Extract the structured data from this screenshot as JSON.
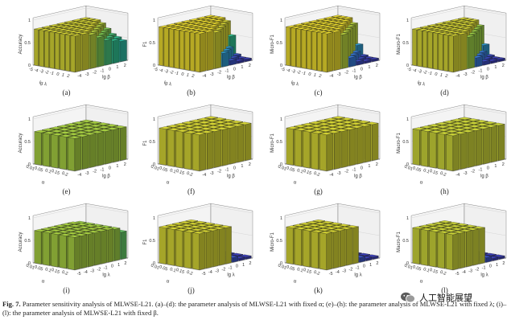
{
  "chart_data": [
    {
      "panel": "(a)",
      "type": "bar3d",
      "zlabel": "Accuracy",
      "xlabel": "lg λ",
      "ylabel": "lg β",
      "x_ticks": [
        "-5",
        "-4",
        "-3",
        "-2",
        "-1",
        "0",
        "1",
        "2"
      ],
      "y_ticks": [
        "-4",
        "-3",
        "-2",
        "-1",
        "0",
        "1",
        "2"
      ],
      "z_ticks": [
        "0",
        "0.5",
        "1"
      ],
      "zlim": [
        0,
        1
      ],
      "fixed": "α",
      "values": [
        [
          0.8,
          0.8,
          0.8,
          0.8,
          0.8,
          0.8,
          0.8
        ],
        [
          0.8,
          0.8,
          0.8,
          0.8,
          0.8,
          0.8,
          0.8
        ],
        [
          0.8,
          0.8,
          0.8,
          0.8,
          0.8,
          0.8,
          0.8
        ],
        [
          0.8,
          0.8,
          0.8,
          0.8,
          0.8,
          0.8,
          0.75
        ],
        [
          0.8,
          0.8,
          0.8,
          0.8,
          0.8,
          0.75,
          0.65
        ],
        [
          0.8,
          0.8,
          0.8,
          0.8,
          0.75,
          0.65,
          0.55
        ],
        [
          0.8,
          0.8,
          0.8,
          0.75,
          0.65,
          0.55,
          0.5
        ],
        [
          0.8,
          0.8,
          0.75,
          0.65,
          0.55,
          0.5,
          0.45
        ]
      ]
    },
    {
      "panel": "(b)",
      "type": "bar3d",
      "zlabel": "F1",
      "xlabel": "lg λ",
      "ylabel": "lg β",
      "x_ticks": [
        "-5",
        "-4",
        "-3",
        "-2",
        "-1",
        "0",
        "1",
        "2"
      ],
      "y_ticks": [
        "-4",
        "-3",
        "-2",
        "-1",
        "0",
        "1",
        "2"
      ],
      "z_ticks": [
        "0",
        "0.5",
        "1"
      ],
      "zlim": [
        0,
        1
      ],
      "fixed": "α",
      "values": [
        [
          0.85,
          0.85,
          0.85,
          0.85,
          0.85,
          0.85,
          0.85
        ],
        [
          0.85,
          0.85,
          0.85,
          0.85,
          0.85,
          0.85,
          0.85
        ],
        [
          0.85,
          0.85,
          0.85,
          0.85,
          0.85,
          0.85,
          0.85
        ],
        [
          0.85,
          0.85,
          0.85,
          0.85,
          0.85,
          0.85,
          0.8
        ],
        [
          0.85,
          0.85,
          0.85,
          0.85,
          0.85,
          0.8,
          0.5
        ],
        [
          0.85,
          0.85,
          0.85,
          0.85,
          0.8,
          0.3,
          0.1
        ],
        [
          0.85,
          0.85,
          0.85,
          0.8,
          0.3,
          0.1,
          0.05
        ],
        [
          0.85,
          0.85,
          0.8,
          0.3,
          0.1,
          0.05,
          0.05
        ]
      ]
    },
    {
      "panel": "(c)",
      "type": "bar3d",
      "zlabel": "Micro-F1",
      "xlabel": "lg λ",
      "ylabel": "lg β",
      "x_ticks": [
        "-5",
        "-4",
        "-3",
        "-2",
        "-1",
        "0",
        "1",
        "2"
      ],
      "y_ticks": [
        "-4",
        "-3",
        "-2",
        "-1",
        "0",
        "1",
        "2"
      ],
      "z_ticks": [
        "0",
        "0.5",
        "1"
      ],
      "zlim": [
        0,
        1
      ],
      "fixed": "α",
      "values": [
        [
          0.85,
          0.85,
          0.85,
          0.85,
          0.85,
          0.85,
          0.85
        ],
        [
          0.85,
          0.85,
          0.85,
          0.85,
          0.85,
          0.85,
          0.85
        ],
        [
          0.85,
          0.85,
          0.85,
          0.85,
          0.85,
          0.85,
          0.85
        ],
        [
          0.85,
          0.85,
          0.85,
          0.85,
          0.85,
          0.85,
          0.75
        ],
        [
          0.85,
          0.85,
          0.85,
          0.85,
          0.85,
          0.75,
          0.3
        ],
        [
          0.85,
          0.85,
          0.85,
          0.85,
          0.75,
          0.2,
          0.08
        ],
        [
          0.85,
          0.85,
          0.85,
          0.75,
          0.2,
          0.08,
          0.05
        ],
        [
          0.85,
          0.85,
          0.75,
          0.2,
          0.08,
          0.05,
          0.05
        ]
      ]
    },
    {
      "panel": "(d)",
      "type": "bar3d",
      "zlabel": "Macro-F1",
      "xlabel": "lg λ",
      "ylabel": "lg β",
      "x_ticks": [
        "-5",
        "-4",
        "-3",
        "-2",
        "-1",
        "0",
        "1",
        "2"
      ],
      "y_ticks": [
        "-4",
        "-3",
        "-2",
        "-1",
        "0",
        "1",
        "2"
      ],
      "z_ticks": [
        "0",
        "0.5",
        "1"
      ],
      "zlim": [
        0,
        1
      ],
      "fixed": "α",
      "values": [
        [
          0.8,
          0.8,
          0.8,
          0.8,
          0.8,
          0.8,
          0.8
        ],
        [
          0.8,
          0.8,
          0.8,
          0.8,
          0.8,
          0.8,
          0.8
        ],
        [
          0.8,
          0.8,
          0.8,
          0.8,
          0.8,
          0.8,
          0.8
        ],
        [
          0.8,
          0.8,
          0.8,
          0.8,
          0.8,
          0.8,
          0.7
        ],
        [
          0.8,
          0.8,
          0.8,
          0.8,
          0.8,
          0.7,
          0.3
        ],
        [
          0.8,
          0.8,
          0.8,
          0.8,
          0.7,
          0.2,
          0.08
        ],
        [
          0.8,
          0.8,
          0.8,
          0.7,
          0.2,
          0.08,
          0.05
        ],
        [
          0.8,
          0.8,
          0.7,
          0.2,
          0.08,
          0.05,
          0.05
        ]
      ]
    },
    {
      "panel": "(e)",
      "type": "bar3d",
      "zlabel": "Accuracy",
      "xlabel": "α",
      "ylabel": "lg β",
      "x_ticks": [
        "0.01",
        "0.05",
        "0.1",
        "0.15",
        "0.2"
      ],
      "y_ticks": [
        "-4",
        "-3",
        "-2",
        "-1",
        "0",
        "1",
        "2"
      ],
      "z_ticks": [
        "0",
        "0.5",
        "1"
      ],
      "zlim": [
        0,
        1
      ],
      "fixed": "λ",
      "values": [
        [
          0.72,
          0.72,
          0.72,
          0.72,
          0.72,
          0.72,
          0.72
        ],
        [
          0.72,
          0.72,
          0.72,
          0.72,
          0.72,
          0.72,
          0.72
        ],
        [
          0.72,
          0.72,
          0.72,
          0.72,
          0.72,
          0.72,
          0.72
        ],
        [
          0.72,
          0.72,
          0.72,
          0.72,
          0.72,
          0.72,
          0.72
        ],
        [
          0.72,
          0.72,
          0.72,
          0.72,
          0.72,
          0.72,
          0.72
        ]
      ]
    },
    {
      "panel": "(f)",
      "type": "bar3d",
      "zlabel": "F1",
      "xlabel": "α",
      "ylabel": "lg β",
      "x_ticks": [
        "0.01",
        "0.05",
        "0.1",
        "0.15",
        "0.2"
      ],
      "y_ticks": [
        "-4",
        "-3",
        "-2",
        "-1",
        "0",
        "1",
        "2"
      ],
      "z_ticks": [
        "0",
        "0.5",
        "1"
      ],
      "zlim": [
        0,
        1
      ],
      "fixed": "λ",
      "values": [
        [
          0.8,
          0.8,
          0.8,
          0.8,
          0.8,
          0.8,
          0.8
        ],
        [
          0.8,
          0.8,
          0.8,
          0.8,
          0.8,
          0.8,
          0.8
        ],
        [
          0.8,
          0.8,
          0.8,
          0.8,
          0.8,
          0.8,
          0.8
        ],
        [
          0.8,
          0.8,
          0.8,
          0.8,
          0.8,
          0.8,
          0.8
        ],
        [
          0.8,
          0.8,
          0.8,
          0.8,
          0.8,
          0.8,
          0.8
        ]
      ]
    },
    {
      "panel": "(g)",
      "type": "bar3d",
      "zlabel": "Micro-F1",
      "xlabel": "α",
      "ylabel": "lg β",
      "x_ticks": [
        "0.01",
        "0.05",
        "0.1",
        "0.15",
        "0.2"
      ],
      "y_ticks": [
        "-4",
        "-3",
        "-2",
        "-1",
        "0",
        "1",
        "2"
      ],
      "z_ticks": [
        "0",
        "0.5",
        "1"
      ],
      "zlim": [
        0,
        1
      ],
      "fixed": "λ",
      "values": [
        [
          0.8,
          0.8,
          0.8,
          0.8,
          0.8,
          0.8,
          0.8
        ],
        [
          0.8,
          0.8,
          0.8,
          0.8,
          0.8,
          0.8,
          0.8
        ],
        [
          0.8,
          0.8,
          0.8,
          0.8,
          0.8,
          0.8,
          0.8
        ],
        [
          0.8,
          0.8,
          0.8,
          0.8,
          0.8,
          0.8,
          0.8
        ],
        [
          0.8,
          0.8,
          0.8,
          0.8,
          0.8,
          0.8,
          0.8
        ]
      ]
    },
    {
      "panel": "(h)",
      "type": "bar3d",
      "zlabel": "Macro-F1",
      "xlabel": "α",
      "ylabel": "lg β",
      "x_ticks": [
        "0.01",
        "0.05",
        "0.1",
        "0.15",
        "0.2"
      ],
      "y_ticks": [
        "-4",
        "-3",
        "-2",
        "-1",
        "0",
        "1",
        "2"
      ],
      "z_ticks": [
        "0",
        "0.5",
        "1"
      ],
      "zlim": [
        0,
        1
      ],
      "fixed": "λ",
      "values": [
        [
          0.78,
          0.78,
          0.78,
          0.78,
          0.78,
          0.78,
          0.78
        ],
        [
          0.78,
          0.78,
          0.78,
          0.78,
          0.78,
          0.78,
          0.78
        ],
        [
          0.78,
          0.78,
          0.78,
          0.78,
          0.78,
          0.78,
          0.78
        ],
        [
          0.78,
          0.78,
          0.78,
          0.78,
          0.78,
          0.78,
          0.78
        ],
        [
          0.78,
          0.78,
          0.78,
          0.78,
          0.78,
          0.78,
          0.78
        ]
      ]
    },
    {
      "panel": "(i)",
      "type": "bar3d",
      "zlabel": "Accuracy",
      "xlabel": "α",
      "ylabel": "lg λ",
      "x_ticks": [
        "0.01",
        "0.05",
        "0.1",
        "0.15",
        "0.2"
      ],
      "y_ticks": [
        "-5",
        "-4",
        "-3",
        "-2",
        "-1",
        "0",
        "1",
        "2"
      ],
      "z_ticks": [
        "0",
        "0.5",
        "1"
      ],
      "zlim": [
        0,
        1
      ],
      "fixed": "β",
      "values": [
        [
          0.72,
          0.72,
          0.72,
          0.72,
          0.72,
          0.72,
          0.7,
          0.6
        ],
        [
          0.72,
          0.72,
          0.72,
          0.72,
          0.72,
          0.72,
          0.7,
          0.6
        ],
        [
          0.72,
          0.72,
          0.72,
          0.72,
          0.72,
          0.72,
          0.7,
          0.6
        ],
        [
          0.72,
          0.72,
          0.72,
          0.72,
          0.72,
          0.72,
          0.7,
          0.6
        ],
        [
          0.72,
          0.72,
          0.72,
          0.72,
          0.72,
          0.72,
          0.7,
          0.6
        ]
      ]
    },
    {
      "panel": "(j)",
      "type": "bar3d",
      "zlabel": "F1",
      "xlabel": "α",
      "ylabel": "lg λ",
      "x_ticks": [
        "0.01",
        "0.05",
        "0.1",
        "0.15",
        "0.2"
      ],
      "y_ticks": [
        "-5",
        "-4",
        "-3",
        "-2",
        "-1",
        "0",
        "1",
        "2"
      ],
      "z_ticks": [
        "0",
        "0.5",
        "1"
      ],
      "zlim": [
        0,
        1
      ],
      "fixed": "β",
      "values": [
        [
          0.8,
          0.8,
          0.8,
          0.8,
          0.8,
          0.1,
          0.05,
          0.05
        ],
        [
          0.8,
          0.8,
          0.8,
          0.8,
          0.8,
          0.1,
          0.05,
          0.05
        ],
        [
          0.8,
          0.8,
          0.8,
          0.8,
          0.8,
          0.1,
          0.05,
          0.05
        ],
        [
          0.8,
          0.8,
          0.8,
          0.8,
          0.8,
          0.1,
          0.05,
          0.05
        ],
        [
          0.8,
          0.8,
          0.8,
          0.8,
          0.8,
          0.1,
          0.05,
          0.05
        ]
      ]
    },
    {
      "panel": "(k)",
      "type": "bar3d",
      "zlabel": "Micro-F1",
      "xlabel": "α",
      "ylabel": "lg λ",
      "x_ticks": [
        "0.01",
        "0.05",
        "0.1",
        "0.15",
        "0.2"
      ],
      "y_ticks": [
        "-5",
        "-4",
        "-3",
        "-2",
        "-1",
        "0",
        "1",
        "2"
      ],
      "z_ticks": [
        "0",
        "0.5",
        "1"
      ],
      "zlim": [
        0,
        1
      ],
      "fixed": "β",
      "values": [
        [
          0.8,
          0.8,
          0.8,
          0.8,
          0.8,
          0.1,
          0.05,
          0.05
        ],
        [
          0.8,
          0.8,
          0.8,
          0.8,
          0.8,
          0.1,
          0.05,
          0.05
        ],
        [
          0.8,
          0.8,
          0.8,
          0.8,
          0.8,
          0.1,
          0.05,
          0.05
        ],
        [
          0.8,
          0.8,
          0.8,
          0.8,
          0.8,
          0.1,
          0.05,
          0.05
        ],
        [
          0.8,
          0.8,
          0.8,
          0.8,
          0.8,
          0.1,
          0.05,
          0.05
        ]
      ]
    },
    {
      "panel": "(l)",
      "type": "bar3d",
      "zlabel": "Macro-F1",
      "xlabel": "α",
      "ylabel": "lg λ",
      "x_ticks": [
        "0.01",
        "0.05",
        "0.1",
        "0.15",
        "0.2"
      ],
      "y_ticks": [
        "-5",
        "-4",
        "-3",
        "-2",
        "-1",
        "0",
        "1",
        "2"
      ],
      "z_ticks": [
        "0",
        "0.5",
        "1"
      ],
      "zlim": [
        0,
        1
      ],
      "fixed": "β",
      "values": [
        [
          0.78,
          0.78,
          0.78,
          0.78,
          0.78,
          0.1,
          0.05,
          0.05
        ],
        [
          0.78,
          0.78,
          0.78,
          0.78,
          0.78,
          0.1,
          0.05,
          0.05
        ],
        [
          0.78,
          0.78,
          0.78,
          0.78,
          0.78,
          0.1,
          0.05,
          0.05
        ],
        [
          0.78,
          0.78,
          0.78,
          0.78,
          0.78,
          0.1,
          0.05,
          0.05
        ],
        [
          0.78,
          0.78,
          0.78,
          0.78,
          0.78,
          0.1,
          0.05,
          0.05
        ]
      ]
    }
  ],
  "caption": {
    "label": "Fig. 7.",
    "text": "Parameter sensitivity analysis of MLWSE-L21. (a)–(d): the parameter analysis of MLWSE-L21 with fixed α; (e)–(h): the parameter analysis of MLWSE-L21 with fixed λ; (i)–(l): the parameter analysis of MLWSE-L21 with fixed β."
  },
  "watermark": {
    "text": "人工智能展望",
    "icon": "wechat-logo"
  },
  "colors": {
    "colormap": [
      "#3b2ba6",
      "#3a6cd6",
      "#2da3c8",
      "#2fbf8f",
      "#86c94a",
      "#e8d62f",
      "#f5f227"
    ]
  }
}
